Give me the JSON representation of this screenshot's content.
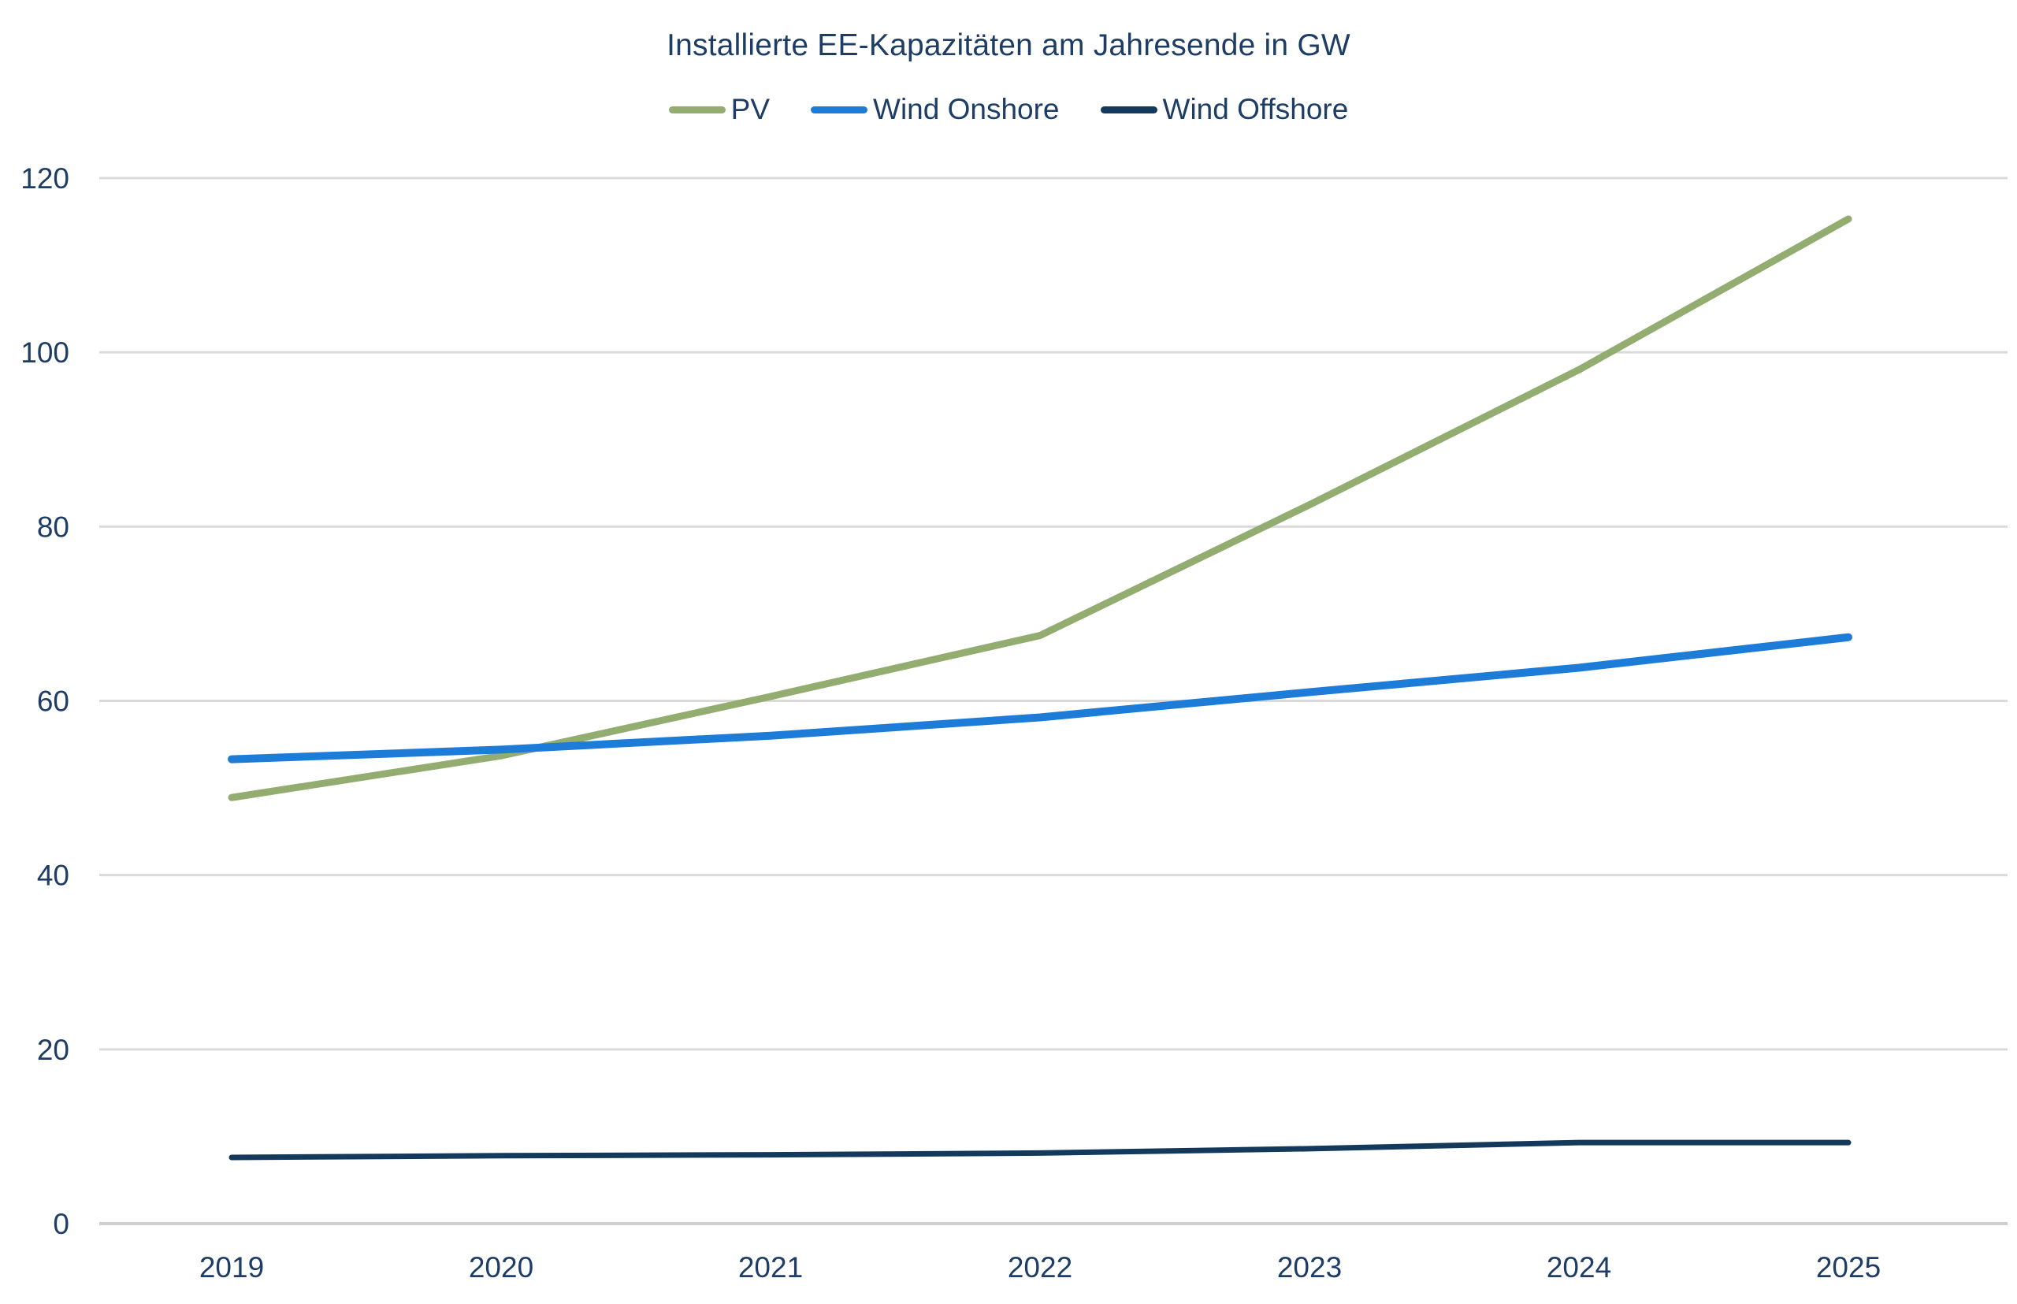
{
  "title": "Installierte EE-Kapazitäten am Jahresende in GW",
  "chart_data": {
    "type": "line",
    "title": "Installierte EE-Kapazitäten am Jahresende in GW",
    "xlabel": "",
    "ylabel": "",
    "unit": "GW",
    "x": [
      "2019",
      "2020",
      "2021",
      "2022",
      "2023",
      "2024",
      "2025"
    ],
    "series": [
      {
        "name": "PV",
        "color": "#93ad70",
        "values": [
          48.9,
          53.7,
          60.5,
          67.5,
          82.5,
          98.0,
          115.3
        ]
      },
      {
        "name": "Wind Onshore",
        "color": "#1e7cd9",
        "values": [
          53.3,
          54.4,
          56.0,
          58.1,
          61.0,
          63.8,
          67.3
        ]
      },
      {
        "name": "Wind Offshore",
        "color": "#133a5c",
        "values": [
          7.6,
          7.8,
          7.9,
          8.1,
          8.6,
          9.3,
          9.3
        ]
      }
    ],
    "ylim": [
      0,
      120
    ],
    "yticks": [
      0,
      20,
      40,
      60,
      80,
      100,
      120
    ],
    "grid": "horizontal",
    "legend_position": "top",
    "text_color": "#1d3d66",
    "grid_color": "#dadada",
    "axis_line_color": "#cfcfcf"
  }
}
